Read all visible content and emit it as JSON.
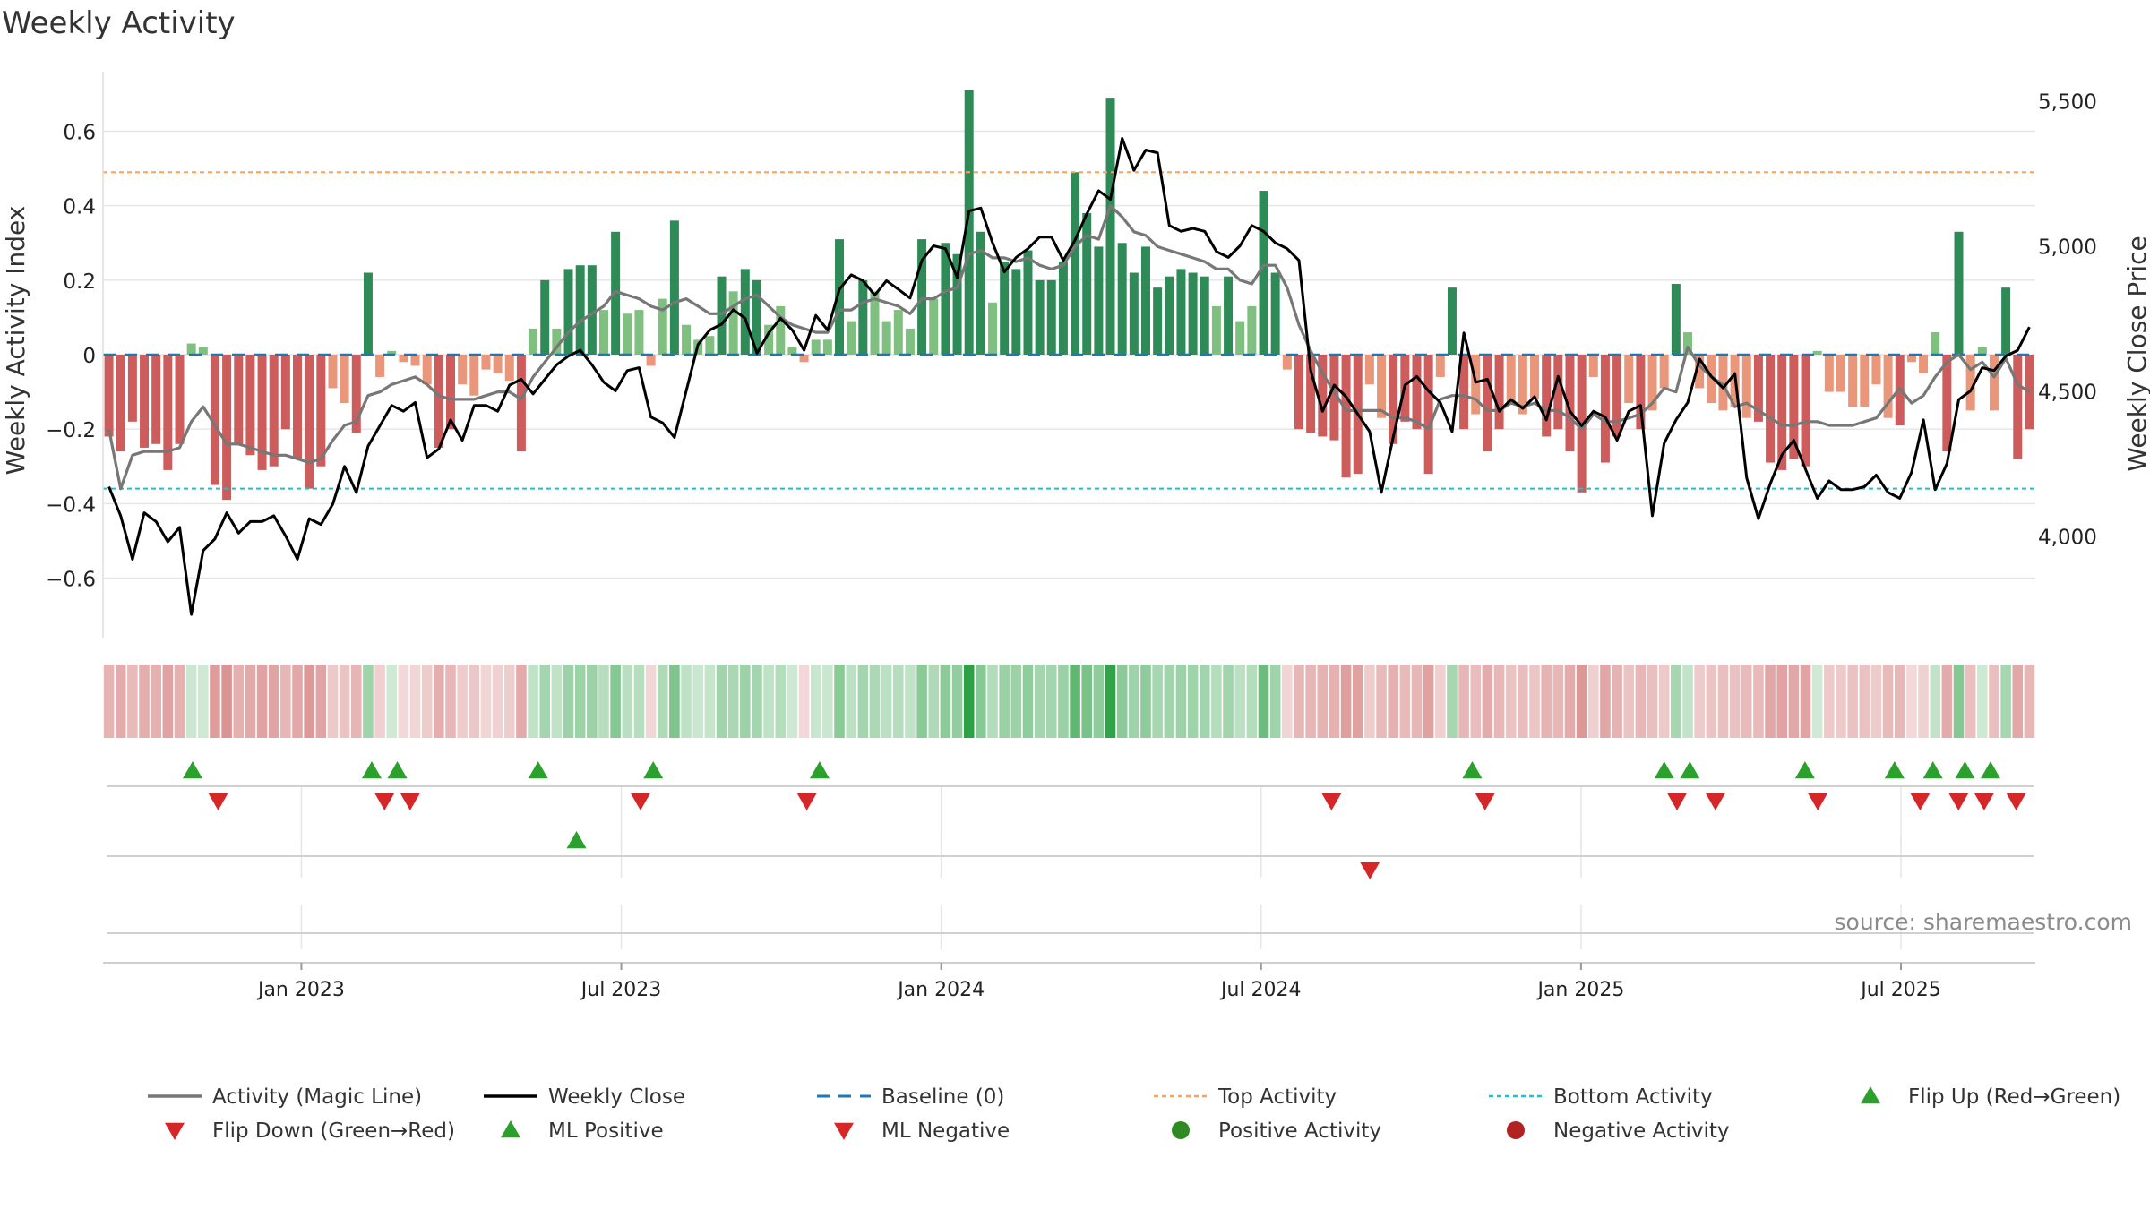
{
  "colors": {
    "strong_green": "#2e8b57",
    "light_green": "#7fbf7f",
    "strong_red": "#cd5c5c",
    "light_red": "#e9967a",
    "magic_line": "#777777",
    "close_line": "#000000",
    "baseline": "#1f77b4",
    "top_line": "#f4a460",
    "bottom_line": "#20c0c8",
    "marker_up": "#2ca02c",
    "marker_down": "#d62728",
    "marker_neg": "#b22222",
    "grid": "#e6e6e6",
    "text": "#333333"
  },
  "chart_data": {
    "type": "bar",
    "title": "Weekly Activity",
    "ylabel": "Weekly Activity Index",
    "y2label": "Weekly Close Price",
    "source": "source: sharemaestro.com",
    "ylim": [
      -0.76,
      0.76
    ],
    "y2lim": [
      3650,
      5600
    ],
    "yticks": [
      0.6,
      0.4,
      0.2,
      0,
      -0.2,
      -0.4,
      -0.6
    ],
    "ytick_labels": [
      "0.6",
      "0.4",
      "0.2",
      "0",
      "−0.2",
      "−0.4",
      "−0.6"
    ],
    "y2ticks": [
      5500,
      5000,
      4500,
      4000
    ],
    "y2tick_labels": [
      "5,500",
      "5,000",
      "4,500",
      "4,000"
    ],
    "top_activity": 0.49,
    "bottom_activity": -0.36,
    "baseline": 0,
    "week_range": [
      0,
      151
    ],
    "xticks": [
      {
        "week": 15.5,
        "label": "Jan 2023"
      },
      {
        "week": 40.5,
        "label": "Jul 2023"
      },
      {
        "week": 65.5,
        "label": "Jan 2024"
      },
      {
        "week": 90.5,
        "label": "Jul 2024"
      },
      {
        "week": 115.5,
        "label": "Jan 2025"
      },
      {
        "week": 140.5,
        "label": "Jul 2025"
      }
    ],
    "activity": [
      -0.22,
      -0.26,
      -0.18,
      -0.25,
      -0.24,
      -0.31,
      -0.24,
      0.03,
      0.02,
      -0.35,
      -0.39,
      -0.24,
      -0.27,
      -0.31,
      -0.3,
      -0.2,
      -0.28,
      -0.36,
      -0.3,
      -0.09,
      -0.13,
      -0.21,
      0.22,
      -0.06,
      0.01,
      -0.02,
      -0.03,
      -0.08,
      -0.25,
      -0.2,
      -0.08,
      -0.11,
      -0.04,
      -0.05,
      -0.07,
      -0.26,
      0.07,
      0.2,
      0.07,
      0.23,
      0.24,
      0.24,
      0.12,
      0.33,
      0.11,
      0.12,
      -0.03,
      0.15,
      0.36,
      0.08,
      0.04,
      0.05,
      0.21,
      0.17,
      0.23,
      0.2,
      0.08,
      0.13,
      0.02,
      -0.02,
      0.04,
      0.04,
      0.31,
      0.09,
      0.2,
      0.17,
      0.09,
      0.12,
      0.07,
      0.31,
      0.15,
      0.3,
      0.27,
      0.71,
      0.33,
      0.14,
      0.25,
      0.23,
      0.28,
      0.2,
      0.2,
      0.25,
      0.49,
      0.38,
      0.29,
      0.69,
      0.3,
      0.22,
      0.29,
      0.18,
      0.21,
      0.23,
      0.22,
      0.21,
      0.13,
      0.21,
      0.09,
      0.13,
      0.44,
      0.22,
      -0.04,
      -0.2,
      -0.21,
      -0.22,
      -0.23,
      -0.33,
      -0.32,
      -0.08,
      -0.17,
      -0.24,
      -0.18,
      -0.2,
      -0.32,
      -0.06,
      0.18,
      -0.2,
      -0.16,
      -0.26,
      -0.2,
      -0.13,
      -0.16,
      -0.12,
      -0.22,
      -0.2,
      -0.26,
      -0.37,
      -0.06,
      -0.29,
      -0.22,
      -0.13,
      -0.2,
      -0.15,
      -0.09,
      0.19,
      0.06,
      -0.09,
      -0.13,
      -0.15,
      -0.14,
      -0.17,
      -0.18,
      -0.29,
      -0.31,
      -0.28,
      -0.3,
      0.01,
      -0.1,
      -0.1,
      -0.14,
      -0.14,
      -0.08,
      -0.17,
      -0.19,
      -0.02,
      -0.05,
      0.06,
      -0.26,
      0.33,
      -0.15,
      0.02,
      -0.15,
      0.18,
      -0.28,
      -0.2
    ],
    "magic_line": [
      -0.2,
      -0.36,
      -0.27,
      -0.26,
      -0.26,
      -0.26,
      -0.25,
      -0.18,
      -0.14,
      -0.19,
      -0.24,
      -0.24,
      -0.25,
      -0.26,
      -0.27,
      -0.27,
      -0.28,
      -0.29,
      -0.28,
      -0.23,
      -0.19,
      -0.18,
      -0.11,
      -0.1,
      -0.08,
      -0.07,
      -0.06,
      -0.08,
      -0.11,
      -0.12,
      -0.12,
      -0.12,
      -0.11,
      -0.1,
      -0.1,
      -0.12,
      -0.06,
      -0.02,
      0.02,
      0.06,
      0.09,
      0.11,
      0.13,
      0.17,
      0.16,
      0.15,
      0.13,
      0.12,
      0.14,
      0.15,
      0.13,
      0.11,
      0.11,
      0.13,
      0.15,
      0.16,
      0.13,
      0.1,
      0.08,
      0.07,
      0.06,
      0.06,
      0.12,
      0.12,
      0.14,
      0.15,
      0.14,
      0.13,
      0.11,
      0.15,
      0.15,
      0.17,
      0.18,
      0.27,
      0.28,
      0.26,
      0.26,
      0.25,
      0.26,
      0.24,
      0.23,
      0.24,
      0.29,
      0.32,
      0.31,
      0.4,
      0.37,
      0.33,
      0.32,
      0.29,
      0.28,
      0.27,
      0.26,
      0.25,
      0.23,
      0.23,
      0.2,
      0.19,
      0.24,
      0.24,
      0.18,
      0.08,
      0.01,
      -0.05,
      -0.1,
      -0.15,
      -0.15,
      -0.15,
      -0.15,
      -0.17,
      -0.17,
      -0.18,
      -0.2,
      -0.12,
      -0.11,
      -0.11,
      -0.12,
      -0.15,
      -0.15,
      -0.13,
      -0.14,
      -0.13,
      -0.15,
      -0.15,
      -0.17,
      -0.2,
      -0.16,
      -0.18,
      -0.18,
      -0.17,
      -0.16,
      -0.13,
      -0.09,
      -0.1,
      0.02,
      -0.03,
      -0.06,
      -0.08,
      -0.14,
      -0.13,
      -0.15,
      -0.17,
      -0.19,
      -0.19,
      -0.18,
      -0.18,
      -0.19,
      -0.19,
      -0.19,
      -0.18,
      -0.17,
      -0.13,
      -0.09,
      -0.13,
      -0.11,
      -0.06,
      -0.02,
      0,
      -0.04,
      -0.02,
      -0.06,
      -0.01,
      -0.08,
      -0.1
    ],
    "weekly_close": [
      4170,
      4070,
      3920,
      4080,
      4050,
      3980,
      4030,
      3730,
      3950,
      3990,
      4080,
      4010,
      4050,
      4050,
      4070,
      4000,
      3920,
      4060,
      4040,
      4110,
      4240,
      4150,
      4310,
      4380,
      4450,
      4430,
      4460,
      4270,
      4300,
      4400,
      4330,
      4450,
      4450,
      4430,
      4520,
      4540,
      4490,
      4540,
      4590,
      4620,
      4640,
      4590,
      4530,
      4500,
      4570,
      4580,
      4410,
      4390,
      4340,
      4500,
      4660,
      4710,
      4730,
      4780,
      4750,
      4630,
      4700,
      4750,
      4710,
      4640,
      4760,
      4710,
      4850,
      4900,
      4880,
      4830,
      4880,
      4850,
      4820,
      4950,
      5000,
      4990,
      4890,
      5120,
      5130,
      5010,
      4910,
      4960,
      4990,
      5030,
      5030,
      4950,
      5020,
      5110,
      5190,
      5160,
      5370,
      5260,
      5330,
      5320,
      5070,
      5050,
      5060,
      5050,
      4980,
      4960,
      5000,
      5070,
      5050,
      5010,
      4990,
      4950,
      4570,
      4430,
      4520,
      4480,
      4420,
      4360,
      4150,
      4340,
      4520,
      4550,
      4500,
      4460,
      4360,
      4700,
      4530,
      4540,
      4430,
      4470,
      4440,
      4480,
      4400,
      4550,
      4430,
      4380,
      4430,
      4410,
      4330,
      4430,
      4450,
      4070,
      4320,
      4400,
      4460,
      4610,
      4550,
      4510,
      4560,
      4200,
      4060,
      4180,
      4280,
      4330,
      4230,
      4130,
      4190,
      4160,
      4160,
      4170,
      4210,
      4150,
      4130,
      4220,
      4400,
      4160,
      4250,
      4470,
      4500,
      4580,
      4570,
      4620,
      4640,
      4720
    ],
    "markers": [
      {
        "week": 7,
        "row": 1,
        "type": "flip_up"
      },
      {
        "week": 9,
        "row": 1,
        "type": "flip_down"
      },
      {
        "week": 21,
        "row": 1,
        "type": "flip_up"
      },
      {
        "week": 22,
        "row": 1,
        "type": "flip_down"
      },
      {
        "week": 23,
        "row": 1,
        "type": "flip_up"
      },
      {
        "week": 24,
        "row": 1,
        "type": "flip_down"
      },
      {
        "week": 34,
        "row": 1,
        "type": "flip_up"
      },
      {
        "week": 37,
        "row": 2,
        "type": "ml_positive"
      },
      {
        "week": 42,
        "row": 1,
        "type": "flip_down"
      },
      {
        "week": 43,
        "row": 1,
        "type": "flip_up"
      },
      {
        "week": 55,
        "row": 1,
        "type": "flip_down"
      },
      {
        "week": 56,
        "row": 1,
        "type": "flip_up"
      },
      {
        "week": 96,
        "row": 1,
        "type": "flip_down"
      },
      {
        "week": 99,
        "row": 2,
        "type": "ml_negative"
      },
      {
        "week": 107,
        "row": 1,
        "type": "flip_up"
      },
      {
        "week": 108,
        "row": 1,
        "type": "flip_down"
      },
      {
        "week": 122,
        "row": 1,
        "type": "flip_up"
      },
      {
        "week": 123,
        "row": 1,
        "type": "flip_down"
      },
      {
        "week": 124,
        "row": 1,
        "type": "flip_up"
      },
      {
        "week": 126,
        "row": 1,
        "type": "flip_down"
      },
      {
        "week": 133,
        "row": 1,
        "type": "flip_up"
      },
      {
        "week": 134,
        "row": 1,
        "type": "flip_down"
      },
      {
        "week": 140,
        "row": 1,
        "type": "flip_up"
      },
      {
        "week": 142,
        "row": 1,
        "type": "flip_down"
      },
      {
        "week": 143,
        "row": 1,
        "type": "flip_up"
      },
      {
        "week": 145,
        "row": 1,
        "type": "flip_down"
      },
      {
        "week": 145.5,
        "row": 1,
        "type": "flip_up"
      },
      {
        "week": 147,
        "row": 1,
        "type": "flip_down"
      },
      {
        "week": 147.5,
        "row": 1,
        "type": "flip_up"
      },
      {
        "week": 149.5,
        "row": 1,
        "type": "flip_down"
      }
    ],
    "legend": [
      {
        "label": "Activity (Magic Line)",
        "symbol": "line",
        "color": "#777777"
      },
      {
        "label": "Weekly Close",
        "symbol": "line",
        "color": "#000000"
      },
      {
        "label": "Baseline (0)",
        "symbol": "dash",
        "color": "#1f77b4"
      },
      {
        "label": "Top Activity",
        "symbol": "dot-line",
        "color": "#f4a460"
      },
      {
        "label": "Bottom Activity",
        "symbol": "dot-line",
        "color": "#20c0c8"
      },
      {
        "label": "Flip Up (Red→Green)",
        "symbol": "tri-up",
        "color": "#2ca02c"
      },
      {
        "label": "Flip Down (Green→Red)",
        "symbol": "tri-down",
        "color": "#d62728"
      },
      {
        "label": "ML Positive",
        "symbol": "tri-up",
        "color": "#2ca02c"
      },
      {
        "label": "ML Negative",
        "symbol": "tri-down",
        "color": "#d62728"
      },
      {
        "label": "Positive Activity",
        "symbol": "circle",
        "color": "#2e8b22"
      },
      {
        "label": "Negative Activity",
        "symbol": "circle",
        "color": "#b22222"
      }
    ],
    "legend_placement": "bottom"
  }
}
